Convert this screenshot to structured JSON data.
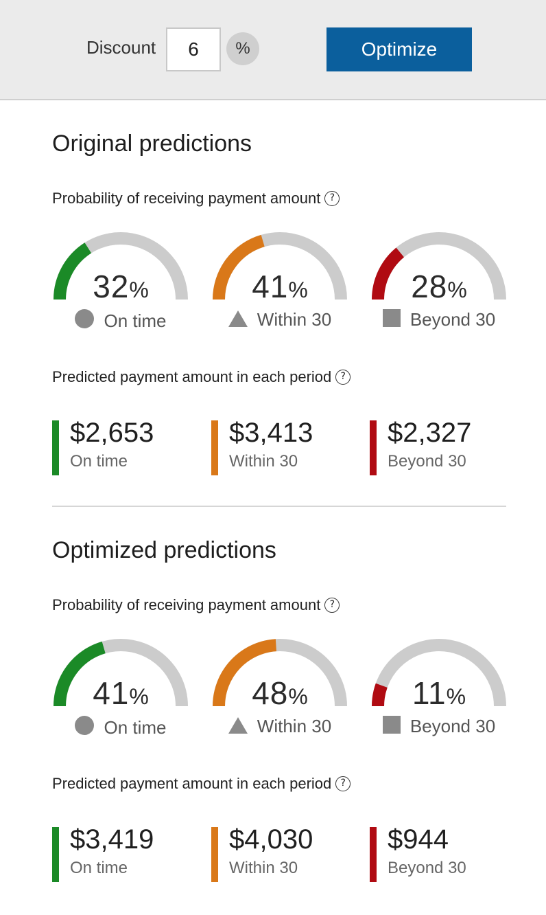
{
  "toolbar": {
    "discount_label": "Discount",
    "discount_value": "6",
    "percent_symbol": "%",
    "optimize_label": "Optimize"
  },
  "colors": {
    "on_time": "#1b8a27",
    "within_30": "#d97819",
    "beyond_30": "#b00b12",
    "track": "#cccccc",
    "button": "#0b5f9d"
  },
  "sections": [
    {
      "title": "Original predictions",
      "probability_heading": "Probability of receiving payment amount",
      "probability_help": "?",
      "gauges": [
        {
          "value": 32,
          "unit": "%",
          "label": "On time",
          "shape": "circle-icon",
          "color": "#1b8a27"
        },
        {
          "value": 41,
          "unit": "%",
          "label": "Within 30",
          "shape": "triangle-icon",
          "color": "#d97819"
        },
        {
          "value": 28,
          "unit": "%",
          "label": "Beyond 30",
          "shape": "square-icon",
          "color": "#b00b12"
        }
      ],
      "amount_heading": "Predicted payment amount in each period",
      "amount_help": "?",
      "amounts": [
        {
          "value": "$2,653",
          "label": "On time",
          "color": "#1b8a27"
        },
        {
          "value": "$3,413",
          "label": "Within 30",
          "color": "#d97819"
        },
        {
          "value": "$2,327",
          "label": "Beyond 30",
          "color": "#b00b12"
        }
      ]
    },
    {
      "title": "Optimized predictions",
      "probability_heading": "Probability of receiving payment amount",
      "probability_help": "?",
      "gauges": [
        {
          "value": 41,
          "unit": "%",
          "label": "On time",
          "shape": "circle-icon",
          "color": "#1b8a27"
        },
        {
          "value": 48,
          "unit": "%",
          "label": "Within 30",
          "shape": "triangle-icon",
          "color": "#d97819"
        },
        {
          "value": 11,
          "unit": "%",
          "label": "Beyond 30",
          "shape": "square-icon",
          "color": "#b00b12"
        }
      ],
      "amount_heading": "Predicted payment amount in each period",
      "amount_help": "?",
      "amounts": [
        {
          "value": "$3,419",
          "label": "On time",
          "color": "#1b8a27"
        },
        {
          "value": "$4,030",
          "label": "Within 30",
          "color": "#d97819"
        },
        {
          "value": "$944",
          "label": "Beyond 30",
          "color": "#b00b12"
        }
      ]
    }
  ]
}
